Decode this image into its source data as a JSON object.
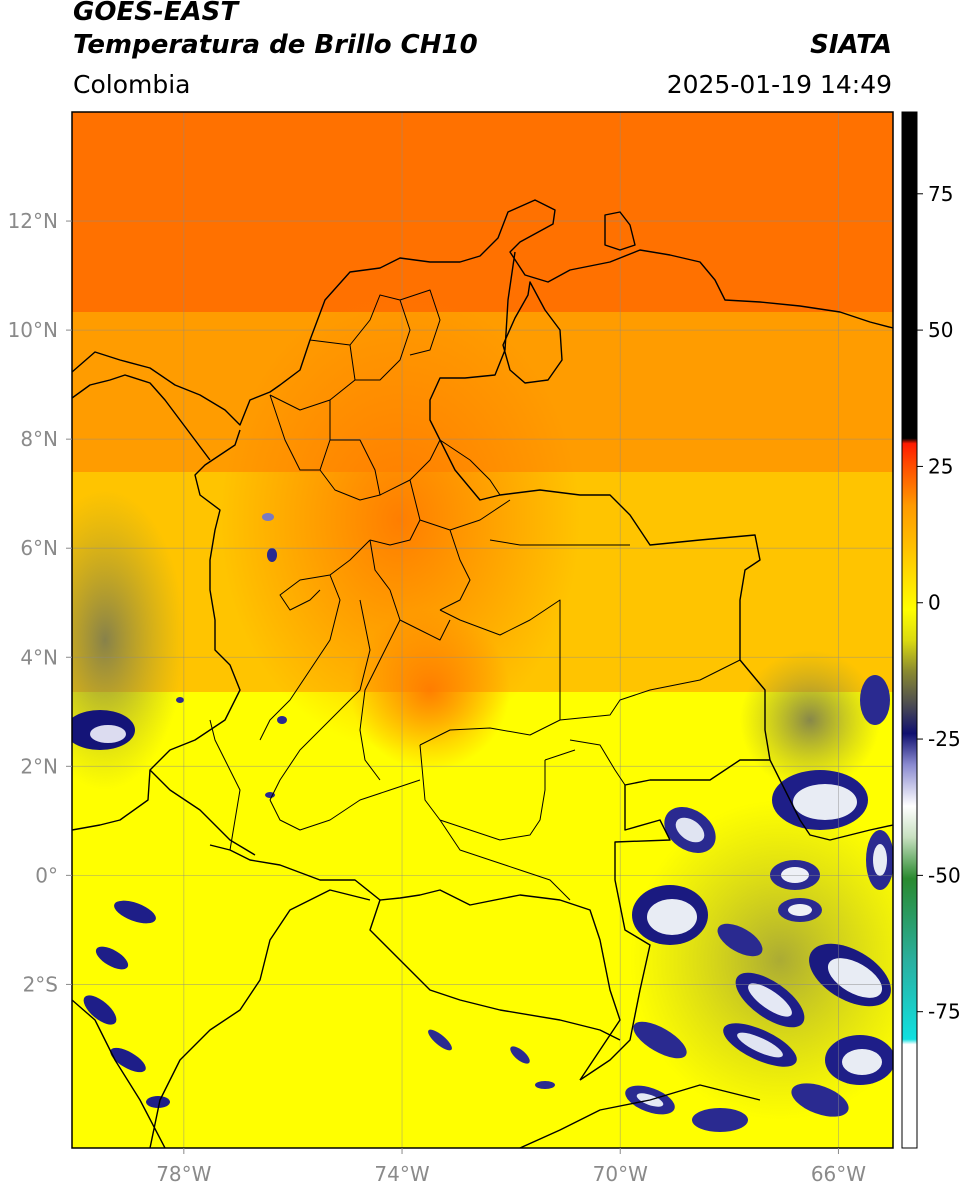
{
  "header": {
    "satellite": "GOES-EAST",
    "product": "Temperatura de Brillo CH10",
    "brand": "SIATA",
    "region": "Colombia",
    "timestamp": "2025-01-19 14:49"
  },
  "map": {
    "lon_range": [
      -80,
      -65
    ],
    "lat_range": [
      -5,
      14
    ],
    "lon_ticks": [
      {
        "value": -78,
        "label": "78°W"
      },
      {
        "value": -74,
        "label": "74°W"
      },
      {
        "value": -70,
        "label": "70°W"
      },
      {
        "value": -66,
        "label": "66°W"
      }
    ],
    "lat_ticks": [
      {
        "value": 12,
        "label": "12°N"
      },
      {
        "value": 10,
        "label": "10°N"
      },
      {
        "value": 8,
        "label": "8°N"
      },
      {
        "value": 6,
        "label": "6°N"
      },
      {
        "value": 4,
        "label": "4°N"
      },
      {
        "value": 2,
        "label": "2°N"
      },
      {
        "value": 0,
        "label": "0°"
      },
      {
        "value": -2,
        "label": "2°S"
      }
    ],
    "gridlines": true
  },
  "colorbar": {
    "range": [
      -100,
      90
    ],
    "ticks": [
      {
        "value": 75,
        "label": "75"
      },
      {
        "value": 50,
        "label": "50"
      },
      {
        "value": 25,
        "label": "25"
      },
      {
        "value": 0,
        "label": "0"
      },
      {
        "value": -25,
        "label": "-25"
      },
      {
        "value": -50,
        "label": "-50"
      },
      {
        "value": -75,
        "label": "-75"
      }
    ],
    "colors": {
      "black": "#000000",
      "red": "#ff1a00",
      "orange": "#ff9a00",
      "yellow": "#ffff00",
      "olive": "#8a8a30",
      "navy": "#101070",
      "white": "#ffffff",
      "green": "#2a8a30",
      "cyan": "#10e0e0"
    }
  }
}
